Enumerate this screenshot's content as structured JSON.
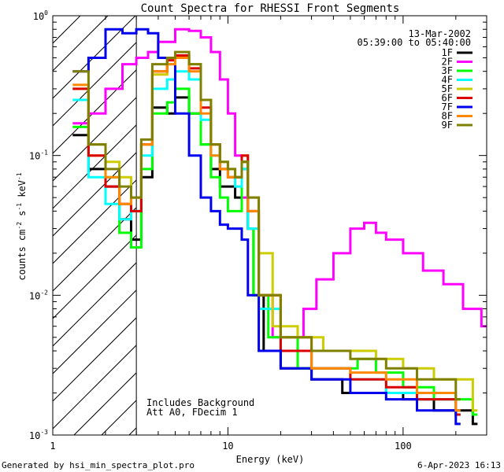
{
  "chart_data": {
    "type": "line",
    "title": "Count Spectra for RHESSI Front Segments",
    "xlabel": "Energy (keV)",
    "ylabel_parts": {
      "base": "counts cm",
      "exp1": "-2",
      "mid": " s",
      "exp2": "-1",
      "tail": " keV",
      "exp3": "-1"
    },
    "x_scale": "log",
    "y_scale": "log",
    "xlim": [
      1,
      300
    ],
    "ylim": [
      0.001,
      1
    ],
    "x_ticks": [
      {
        "value": 1,
        "label": "1"
      },
      {
        "value": 10,
        "label": "10"
      },
      {
        "value": 100,
        "label": "100"
      }
    ],
    "y_ticks": [
      {
        "value": 0.001,
        "base": "10",
        "exp": "-3"
      },
      {
        "value": 0.01,
        "base": "10",
        "exp": "-2"
      },
      {
        "value": 0.1,
        "base": "10",
        "exp": "-1"
      },
      {
        "value": 1,
        "base": "10",
        "exp": "0"
      }
    ],
    "date": "13-Mar-2002",
    "time_range": "05:39:00 to 05:40:00",
    "attenuator_cutoff_keV": 3,
    "annotation_lines": [
      "Includes Background",
      "Att A0, FDecim 1"
    ],
    "series": [
      {
        "name": "1F",
        "color": "#000000",
        "points": [
          [
            1.3,
            0.14
          ],
          [
            1.6,
            0.08
          ],
          [
            2.0,
            0.06
          ],
          [
            2.4,
            0.035
          ],
          [
            2.8,
            0.025
          ],
          [
            3.2,
            0.07
          ],
          [
            3.7,
            0.22
          ],
          [
            4.5,
            0.2
          ],
          [
            5.0,
            0.26
          ],
          [
            6.0,
            0.2
          ],
          [
            7.0,
            0.12
          ],
          [
            8.0,
            0.08
          ],
          [
            9.0,
            0.06
          ],
          [
            10.0,
            0.06
          ],
          [
            11.0,
            0.05
          ],
          [
            12.0,
            0.08
          ],
          [
            13.0,
            0.03
          ],
          [
            14.0,
            0.01
          ],
          [
            16.0,
            0.004
          ],
          [
            20.0,
            0.003
          ],
          [
            30.0,
            0.0025
          ],
          [
            45.0,
            0.002
          ],
          [
            70.0,
            0.002
          ],
          [
            100.0,
            0.0018
          ],
          [
            150.0,
            0.0015
          ],
          [
            250.0,
            0.0012
          ]
        ]
      },
      {
        "name": "2F",
        "color": "#ff00ff",
        "points": [
          [
            1.3,
            0.17
          ],
          [
            1.6,
            0.2
          ],
          [
            2.0,
            0.3
          ],
          [
            2.5,
            0.45
          ],
          [
            3.0,
            0.5
          ],
          [
            3.5,
            0.55
          ],
          [
            4.0,
            0.65
          ],
          [
            5.0,
            0.8
          ],
          [
            6.0,
            0.78
          ],
          [
            7.0,
            0.7
          ],
          [
            8.0,
            0.55
          ],
          [
            9.0,
            0.35
          ],
          [
            10.0,
            0.2
          ],
          [
            11.0,
            0.1
          ],
          [
            12.0,
            0.05
          ],
          [
            13.0,
            0.03
          ],
          [
            15.0,
            0.01
          ],
          [
            18.0,
            0.005
          ],
          [
            22.0,
            0.005
          ],
          [
            27.0,
            0.008
          ],
          [
            32.0,
            0.013
          ],
          [
            40.0,
            0.02
          ],
          [
            50.0,
            0.03
          ],
          [
            60.0,
            0.033
          ],
          [
            70.0,
            0.028
          ],
          [
            80.0,
            0.025
          ],
          [
            100.0,
            0.02
          ],
          [
            130.0,
            0.015
          ],
          [
            170.0,
            0.012
          ],
          [
            220.0,
            0.008
          ],
          [
            280.0,
            0.006
          ]
        ]
      },
      {
        "name": "3F",
        "color": "#00ff00",
        "points": [
          [
            1.3,
            0.16
          ],
          [
            1.6,
            0.12
          ],
          [
            2.0,
            0.07
          ],
          [
            2.4,
            0.028
          ],
          [
            2.8,
            0.022
          ],
          [
            3.2,
            0.08
          ],
          [
            3.7,
            0.2
          ],
          [
            4.5,
            0.24
          ],
          [
            5.0,
            0.3
          ],
          [
            6.0,
            0.2
          ],
          [
            7.0,
            0.12
          ],
          [
            8.0,
            0.07
          ],
          [
            9.0,
            0.05
          ],
          [
            10.0,
            0.04
          ],
          [
            11.0,
            0.04
          ],
          [
            12.0,
            0.09
          ],
          [
            13.0,
            0.03
          ],
          [
            14.0,
            0.01
          ],
          [
            17.0,
            0.005
          ],
          [
            25.0,
            0.003
          ],
          [
            40.0,
            0.003
          ],
          [
            55.0,
            0.0035
          ],
          [
            70.0,
            0.0028
          ],
          [
            100.0,
            0.0022
          ],
          [
            150.0,
            0.0018
          ],
          [
            250.0,
            0.0014
          ]
        ]
      },
      {
        "name": "4F",
        "color": "#00ffff",
        "points": [
          [
            1.3,
            0.25
          ],
          [
            1.6,
            0.07
          ],
          [
            2.0,
            0.045
          ],
          [
            2.4,
            0.035
          ],
          [
            2.8,
            0.04
          ],
          [
            3.2,
            0.1
          ],
          [
            3.7,
            0.3
          ],
          [
            4.5,
            0.35
          ],
          [
            5.0,
            0.4
          ],
          [
            6.0,
            0.35
          ],
          [
            7.0,
            0.18
          ],
          [
            8.0,
            0.1
          ],
          [
            9.0,
            0.08
          ],
          [
            10.0,
            0.07
          ],
          [
            11.0,
            0.06
          ],
          [
            12.0,
            0.08
          ],
          [
            13.0,
            0.03
          ],
          [
            15.0,
            0.008
          ],
          [
            20.0,
            0.004
          ],
          [
            30.0,
            0.003
          ],
          [
            50.0,
            0.0025
          ],
          [
            80.0,
            0.002
          ],
          [
            120.0,
            0.0018
          ],
          [
            200.0,
            0.0014
          ]
        ]
      },
      {
        "name": "5F",
        "color": "#cccc00",
        "points": [
          [
            1.3,
            0.3
          ],
          [
            1.6,
            0.1
          ],
          [
            2.0,
            0.09
          ],
          [
            2.4,
            0.07
          ],
          [
            2.8,
            0.05
          ],
          [
            3.2,
            0.12
          ],
          [
            3.7,
            0.38
          ],
          [
            4.5,
            0.45
          ],
          [
            5.0,
            0.5
          ],
          [
            6.0,
            0.45
          ],
          [
            7.0,
            0.25
          ],
          [
            8.0,
            0.12
          ],
          [
            9.0,
            0.09
          ],
          [
            10.0,
            0.08
          ],
          [
            11.0,
            0.07
          ],
          [
            12.0,
            0.1
          ],
          [
            13.0,
            0.05
          ],
          [
            15.0,
            0.02
          ],
          [
            18.0,
            0.006
          ],
          [
            25.0,
            0.005
          ],
          [
            35.0,
            0.004
          ],
          [
            50.0,
            0.004
          ],
          [
            70.0,
            0.0035
          ],
          [
            100.0,
            0.003
          ],
          [
            150.0,
            0.0025
          ],
          [
            250.0,
            0.0015
          ]
        ]
      },
      {
        "name": "6F",
        "color": "#dd0000",
        "points": [
          [
            1.3,
            0.3
          ],
          [
            1.6,
            0.1
          ],
          [
            2.0,
            0.06
          ],
          [
            2.4,
            0.045
          ],
          [
            2.8,
            0.04
          ],
          [
            3.2,
            0.12
          ],
          [
            3.7,
            0.4
          ],
          [
            4.5,
            0.48
          ],
          [
            5.0,
            0.52
          ],
          [
            6.0,
            0.42
          ],
          [
            7.0,
            0.22
          ],
          [
            8.0,
            0.12
          ],
          [
            9.0,
            0.08
          ],
          [
            10.0,
            0.07
          ],
          [
            11.0,
            0.07
          ],
          [
            12.0,
            0.1
          ],
          [
            13.0,
            0.04
          ],
          [
            15.0,
            0.01
          ],
          [
            20.0,
            0.004
          ],
          [
            30.0,
            0.003
          ],
          [
            50.0,
            0.0025
          ],
          [
            80.0,
            0.0022
          ],
          [
            120.0,
            0.0018
          ],
          [
            200.0,
            0.0014
          ]
        ]
      },
      {
        "name": "7F",
        "color": "#0000ee",
        "points": [
          [
            1.3,
            0.4
          ],
          [
            1.6,
            0.5
          ],
          [
            2.0,
            0.8
          ],
          [
            2.5,
            0.75
          ],
          [
            3.0,
            0.8
          ],
          [
            3.5,
            0.75
          ],
          [
            4.0,
            0.5
          ],
          [
            5.0,
            0.2
          ],
          [
            6.0,
            0.1
          ],
          [
            7.0,
            0.05
          ],
          [
            8.0,
            0.04
          ],
          [
            9.0,
            0.032
          ],
          [
            10.0,
            0.03
          ],
          [
            11.0,
            0.03
          ],
          [
            12.0,
            0.025
          ],
          [
            13.0,
            0.01
          ],
          [
            15.0,
            0.004
          ],
          [
            20.0,
            0.003
          ],
          [
            30.0,
            0.0025
          ],
          [
            50.0,
            0.002
          ],
          [
            80.0,
            0.0018
          ],
          [
            120.0,
            0.0015
          ],
          [
            200.0,
            0.0012
          ]
        ]
      },
      {
        "name": "8F",
        "color": "#ff8800",
        "points": [
          [
            1.3,
            0.32
          ],
          [
            1.6,
            0.12
          ],
          [
            2.0,
            0.07
          ],
          [
            2.4,
            0.045
          ],
          [
            2.8,
            0.05
          ],
          [
            3.2,
            0.12
          ],
          [
            3.7,
            0.4
          ],
          [
            4.5,
            0.45
          ],
          [
            5.0,
            0.5
          ],
          [
            6.0,
            0.4
          ],
          [
            7.0,
            0.2
          ],
          [
            8.0,
            0.1
          ],
          [
            9.0,
            0.08
          ],
          [
            10.0,
            0.07
          ],
          [
            11.0,
            0.07
          ],
          [
            12.0,
            0.09
          ],
          [
            13.0,
            0.04
          ],
          [
            15.0,
            0.01
          ],
          [
            20.0,
            0.005
          ],
          [
            30.0,
            0.003
          ],
          [
            50.0,
            0.0028
          ],
          [
            80.0,
            0.0025
          ],
          [
            120.0,
            0.002
          ],
          [
            200.0,
            0.0015
          ]
        ]
      },
      {
        "name": "9F",
        "color": "#808000",
        "points": [
          [
            1.3,
            0.4
          ],
          [
            1.6,
            0.12
          ],
          [
            2.0,
            0.08
          ],
          [
            2.4,
            0.06
          ],
          [
            2.8,
            0.05
          ],
          [
            3.2,
            0.13
          ],
          [
            3.7,
            0.45
          ],
          [
            4.5,
            0.5
          ],
          [
            5.0,
            0.55
          ],
          [
            6.0,
            0.45
          ],
          [
            7.0,
            0.25
          ],
          [
            8.0,
            0.12
          ],
          [
            9.0,
            0.09
          ],
          [
            10.0,
            0.08
          ],
          [
            11.0,
            0.07
          ],
          [
            12.0,
            0.09
          ],
          [
            13.0,
            0.05
          ],
          [
            15.0,
            0.01
          ],
          [
            20.0,
            0.005
          ],
          [
            30.0,
            0.004
          ],
          [
            50.0,
            0.0035
          ],
          [
            80.0,
            0.003
          ],
          [
            120.0,
            0.0025
          ],
          [
            200.0,
            0.0018
          ]
        ]
      }
    ]
  },
  "footer": {
    "generated_by": "Generated by hsi_min_spectra_plot.pro",
    "timestamp": "6-Apr-2023 16:13"
  }
}
